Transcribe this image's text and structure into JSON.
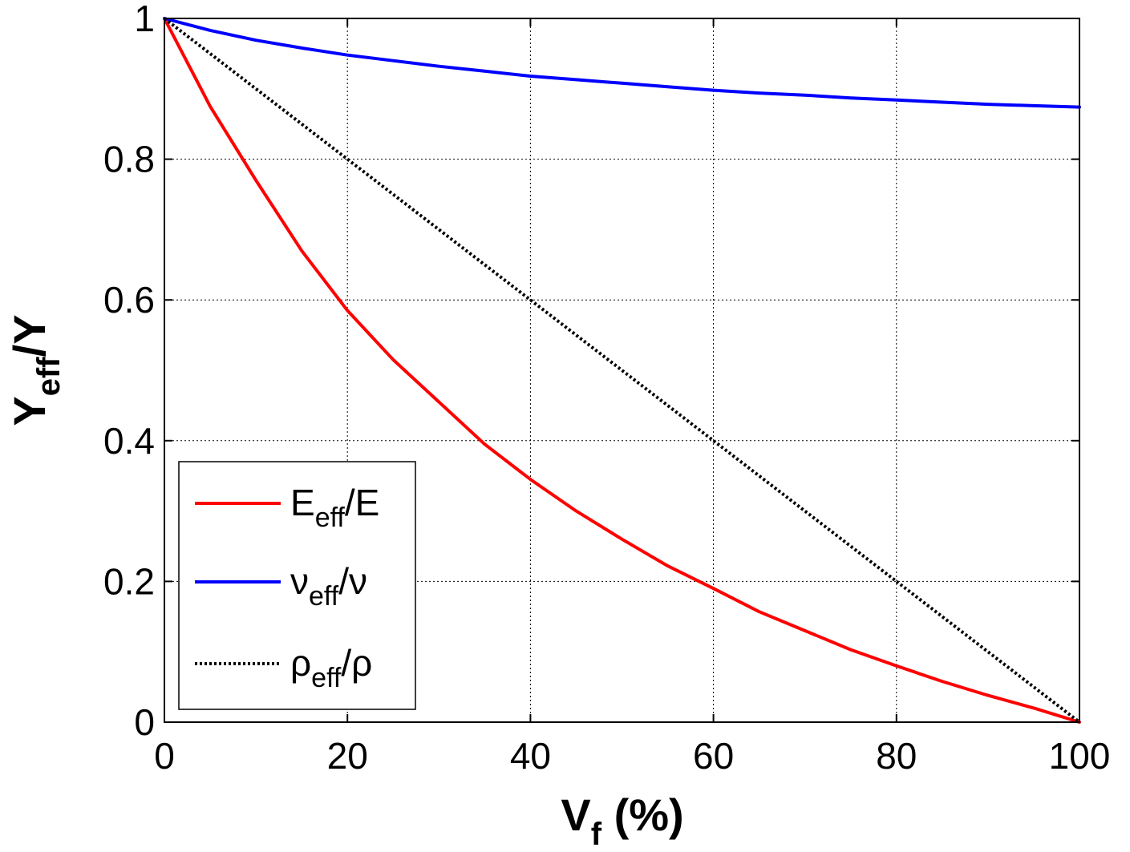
{
  "chart_data": {
    "type": "line",
    "xlabel": {
      "main": "V",
      "sub": "f",
      "rest": " (%)"
    },
    "ylabel": {
      "main": "Y",
      "sub": "eff",
      "rest": "/Y"
    },
    "xlim": [
      0,
      100
    ],
    "ylim": [
      0,
      1
    ],
    "xticks": [
      "0",
      "20",
      "40",
      "60",
      "80",
      "100"
    ],
    "yticks": [
      "0",
      "0.2",
      "0.4",
      "0.6",
      "0.8",
      "1"
    ],
    "grid": true,
    "legend_position": "bottom-left",
    "series": [
      {
        "name": "E_eff/E",
        "legend": {
          "main": "E",
          "sub": "eff",
          "rest": "/E"
        },
        "color": "#ff0000",
        "style": "solid",
        "x": [
          0,
          5,
          10,
          15,
          20,
          25,
          30,
          35,
          40,
          45,
          50,
          55,
          60,
          65,
          70,
          75,
          80,
          85,
          90,
          95,
          100
        ],
        "y": [
          1.0,
          0.875,
          0.77,
          0.67,
          0.585,
          0.515,
          0.455,
          0.395,
          0.345,
          0.3,
          0.26,
          0.222,
          0.19,
          0.157,
          0.13,
          0.103,
          0.08,
          0.058,
          0.038,
          0.02,
          0.0
        ]
      },
      {
        "name": "nu_eff/nu",
        "legend": {
          "main": "ν",
          "sub": "eff",
          "rest": "/ν"
        },
        "color": "#0000ff",
        "style": "solid",
        "x": [
          0,
          5,
          10,
          15,
          20,
          25,
          30,
          35,
          40,
          45,
          50,
          55,
          60,
          65,
          70,
          75,
          80,
          85,
          90,
          95,
          100
        ],
        "y": [
          1.0,
          0.983,
          0.969,
          0.958,
          0.948,
          0.94,
          0.932,
          0.925,
          0.918,
          0.913,
          0.908,
          0.903,
          0.898,
          0.894,
          0.891,
          0.887,
          0.884,
          0.881,
          0.878,
          0.876,
          0.874
        ]
      },
      {
        "name": "rho_eff/rho",
        "legend": {
          "main": "ρ",
          "sub": "eff",
          "rest": "/ρ"
        },
        "color": "#000000",
        "style": "dotted",
        "x": [
          0,
          100
        ],
        "y": [
          1.0,
          0.0
        ]
      }
    ]
  }
}
